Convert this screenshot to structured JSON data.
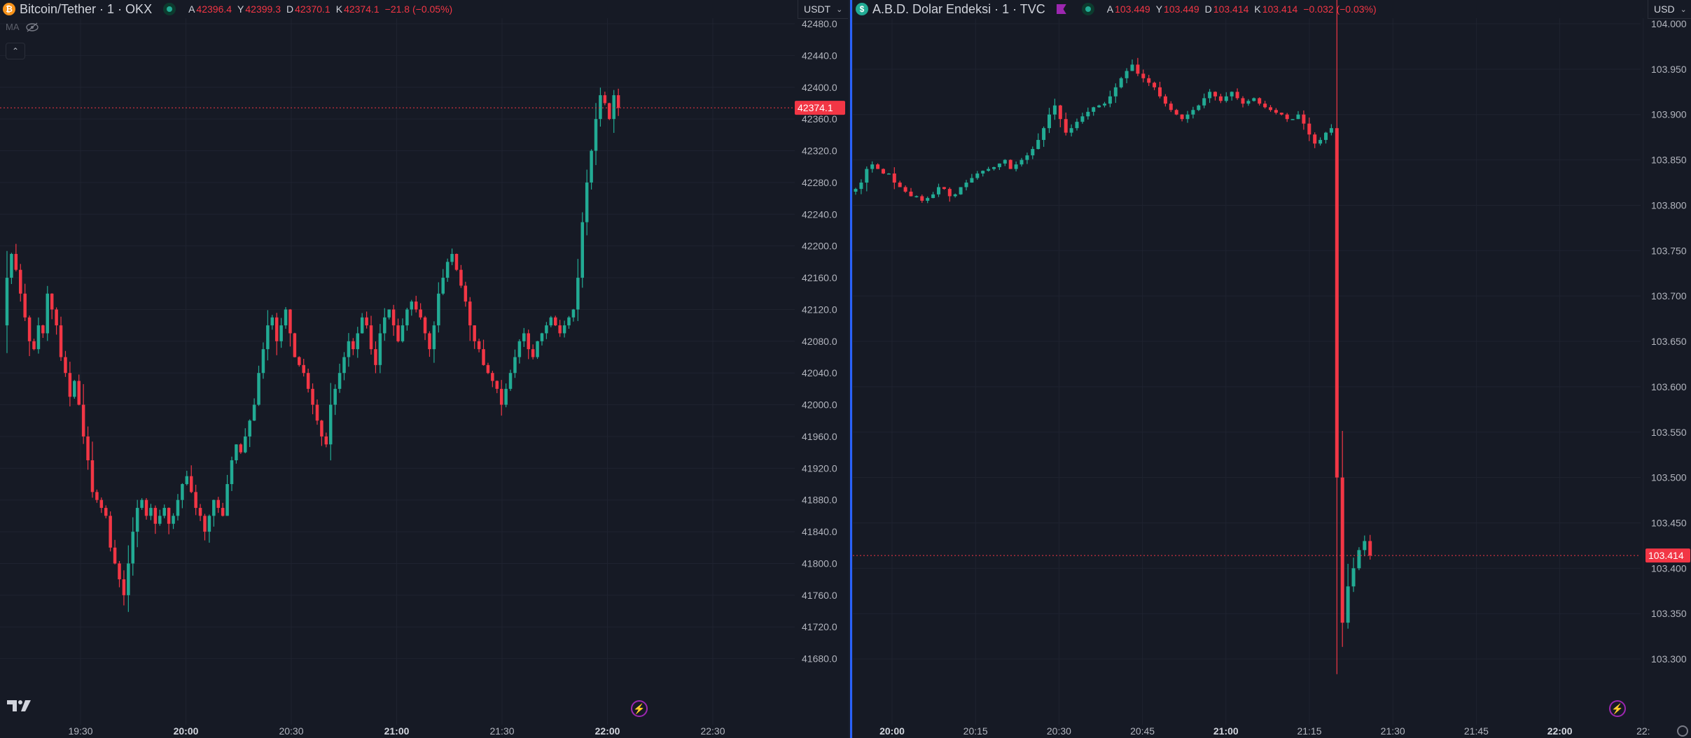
{
  "colors": {
    "up": "#22ab94",
    "down": "#f23645",
    "bg": "#161a25",
    "grid": "#1f2330",
    "axis_text": "#b2b5be",
    "divider": "#2962ff"
  },
  "left": {
    "icon": "bitcoin-icon",
    "title": "Bitcoin/Tether · 1 · OKX",
    "ohlc": [
      {
        "k": "A",
        "v": "42396.4"
      },
      {
        "k": "Y",
        "v": "42399.3"
      },
      {
        "k": "D",
        "v": "42370.1"
      },
      {
        "k": "K",
        "v": "42374.1"
      },
      {
        "k": "",
        "v": "−21.8 (−0.05%)"
      }
    ],
    "currency": "USDT",
    "indicator_label": "MA",
    "price_tag": "42374.1",
    "logo": "TV"
  },
  "right": {
    "icon": "dollar-icon",
    "icon_glyph": "$",
    "title": "A.B.D. Dolar Endeksi · 1 · TVC",
    "ohlc": [
      {
        "k": "A",
        "v": "103.449"
      },
      {
        "k": "Y",
        "v": "103.449"
      },
      {
        "k": "D",
        "v": "103.414"
      },
      {
        "k": "K",
        "v": "103.414"
      },
      {
        "k": "",
        "v": "−0.032 (−0.03%)"
      }
    ],
    "currency": "USD",
    "price_tag": "103.414"
  },
  "chart_data": [
    {
      "type": "candlestick",
      "title": "Bitcoin/Tether · 1 · OKX",
      "ylim": [
        41640,
        42480
      ],
      "y_ticks": [
        "42480.0",
        "42440.0",
        "42400.0",
        "42360.0",
        "42320.0",
        "42280.0",
        "42240.0",
        "42200.0",
        "42160.0",
        "42120.0",
        "42080.0",
        "42040.0",
        "42000.0",
        "41960.0",
        "41920.0",
        "41880.0",
        "41840.0",
        "41800.0",
        "41760.0",
        "41720.0",
        "41680.0"
      ],
      "x_ticks": [
        {
          "label": "19:30",
          "bold": false
        },
        {
          "label": "20:00",
          "bold": true
        },
        {
          "label": "20:30",
          "bold": false
        },
        {
          "label": "21:00",
          "bold": true
        },
        {
          "label": "21:30",
          "bold": false
        },
        {
          "label": "22:00",
          "bold": true
        },
        {
          "label": "22:30",
          "bold": false
        }
      ],
      "last_price": 42374.1,
      "path": [
        42100,
        42160,
        42190,
        42170,
        42140,
        42110,
        42080,
        42070,
        42100,
        42090,
        42140,
        42120,
        42100,
        42060,
        42040,
        42010,
        42030,
        42000,
        41960,
        41930,
        41890,
        41880,
        41870,
        41860,
        41820,
        41800,
        41780,
        41760,
        41800,
        41840,
        41870,
        41880,
        41860,
        41870,
        41850,
        41860,
        41870,
        41850,
        41860,
        41880,
        41900,
        41910,
        41890,
        41870,
        41860,
        41840,
        41860,
        41880,
        41870,
        41860,
        41900,
        41930,
        41950,
        41940,
        41960,
        41980,
        42000,
        42040,
        42070,
        42100,
        42110,
        42080,
        42100,
        42120,
        42090,
        42060,
        42050,
        42040,
        42020,
        42000,
        41980,
        41960,
        41950,
        42000,
        42020,
        42040,
        42060,
        42080,
        42070,
        42090,
        42110,
        42100,
        42070,
        42050,
        42090,
        42110,
        42120,
        42100,
        42080,
        42100,
        42120,
        42130,
        42120,
        42110,
        42090,
        42070,
        42100,
        42140,
        42160,
        42180,
        42190,
        42170,
        42150,
        42130,
        42100,
        42080,
        42070,
        42050,
        42040,
        42030,
        42020,
        42000,
        42020,
        42040,
        42060,
        42080,
        42090,
        42070,
        42060,
        42080,
        42090,
        42100,
        42110,
        42100,
        42090,
        42100,
        42110,
        42120,
        42160,
        42230,
        42280,
        42320,
        42360,
        42390,
        42380,
        42360,
        42390,
        42374
      ]
    },
    {
      "type": "candlestick",
      "title": "A.B.D. Dolar Endeksi · 1 · TVC",
      "ylim": [
        103.28,
        104.0
      ],
      "y_ticks": [
        "104.000",
        "103.950",
        "103.900",
        "103.850",
        "103.800",
        "103.750",
        "103.700",
        "103.650",
        "103.600",
        "103.550",
        "103.500",
        "103.450",
        "103.400",
        "103.350",
        "103.300"
      ],
      "x_ticks": [
        {
          "label": "20:00",
          "bold": true
        },
        {
          "label": "20:15",
          "bold": false
        },
        {
          "label": "20:30",
          "bold": false
        },
        {
          "label": "20:45",
          "bold": false
        },
        {
          "label": "21:00",
          "bold": true
        },
        {
          "label": "21:15",
          "bold": false
        },
        {
          "label": "21:30",
          "bold": false
        },
        {
          "label": "21:45",
          "bold": false
        },
        {
          "label": "22:00",
          "bold": true
        },
        {
          "label": "22:",
          "bold": false
        }
      ],
      "last_price": 103.414,
      "path": [
        103.815,
        103.818,
        103.825,
        103.84,
        103.845,
        103.84,
        103.835,
        103.835,
        103.825,
        103.82,
        103.815,
        103.81,
        103.81,
        103.805,
        103.808,
        103.812,
        103.82,
        103.818,
        103.81,
        103.812,
        103.82,
        103.825,
        103.83,
        103.835,
        103.838,
        103.84,
        103.842,
        103.846,
        103.85,
        103.84,
        103.845,
        103.85,
        103.855,
        103.862,
        103.872,
        103.885,
        103.9,
        103.91,
        103.895,
        103.88,
        103.885,
        103.892,
        103.898,
        103.903,
        103.908,
        103.91,
        103.912,
        103.92,
        103.93,
        103.94,
        103.948,
        103.955,
        103.945,
        103.94,
        103.935,
        103.93,
        103.92,
        103.912,
        103.905,
        103.9,
        103.895,
        103.9,
        103.905,
        103.91,
        103.918,
        103.925,
        103.92,
        103.915,
        103.92,
        103.925,
        103.918,
        103.912,
        103.915,
        103.918,
        103.912,
        103.908,
        103.905,
        103.902,
        103.9,
        103.895,
        103.895,
        103.9,
        103.89,
        103.878,
        103.868,
        103.872,
        103.88,
        103.885,
        103.5,
        103.34,
        103.38,
        103.4,
        103.42,
        103.43,
        103.414
      ]
    }
  ]
}
